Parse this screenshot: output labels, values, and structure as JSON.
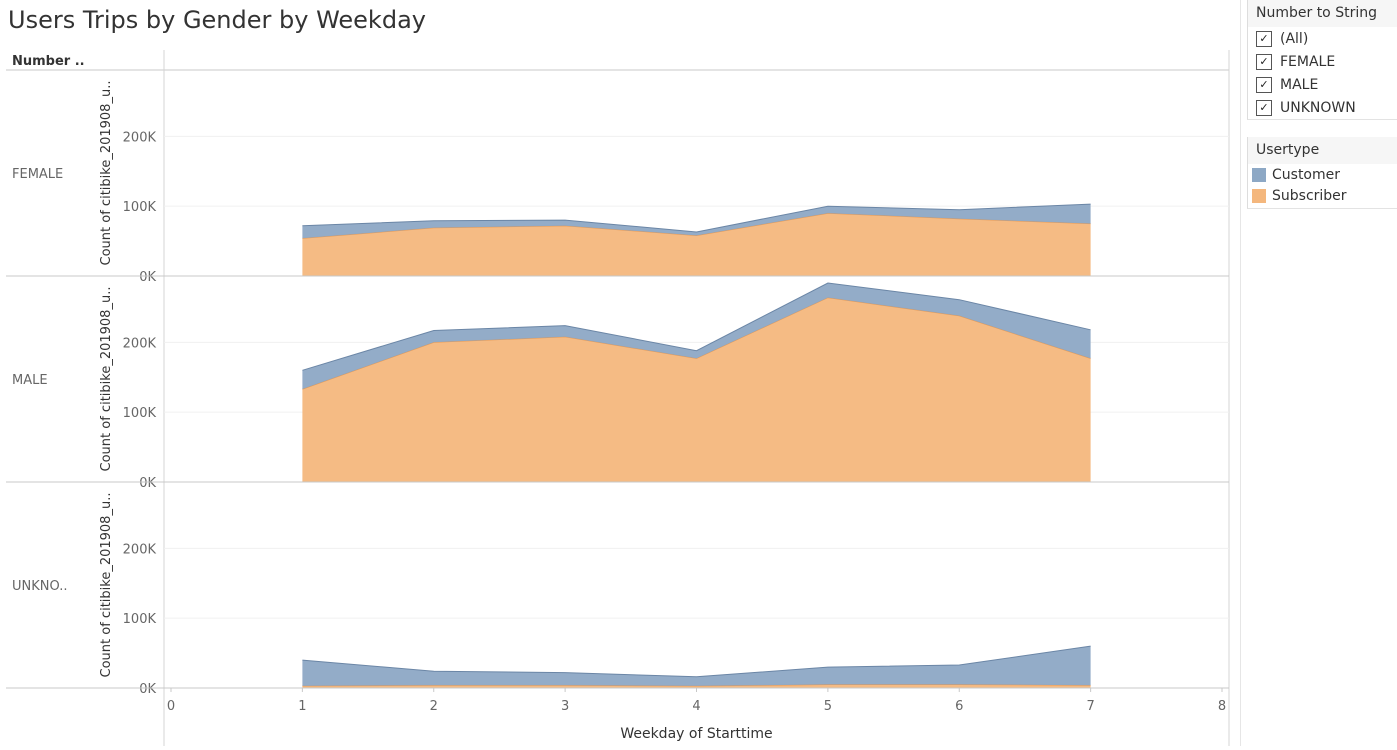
{
  "title": "Users Trips by Gender by Weekday",
  "row_header": "Number ..",
  "filter": {
    "title": "Number to String",
    "items": [
      {
        "label": "(All)",
        "checked": true
      },
      {
        "label": "FEMALE",
        "checked": true
      },
      {
        "label": "MALE",
        "checked": true
      },
      {
        "label": "UNKNOWN",
        "checked": true
      }
    ]
  },
  "legend": {
    "title": "Usertype",
    "items": [
      {
        "label": "Customer",
        "color": "#8da8c5"
      },
      {
        "label": "Subscriber",
        "color": "#f4b77d"
      }
    ]
  },
  "chart_data": {
    "type": "area",
    "stacked": true,
    "xlabel": "Weekday of Starttime",
    "ylabel": "Count of citibike_201908_u..",
    "xlim": [
      0,
      8
    ],
    "xticks": [
      0,
      1,
      2,
      3,
      4,
      5,
      6,
      7,
      8
    ],
    "ylim": [
      0,
      295000
    ],
    "yticks": [
      0,
      100000,
      200000
    ],
    "ytick_labels": [
      "0K",
      "100K",
      "200K"
    ],
    "x": [
      1,
      2,
      3,
      4,
      5,
      6,
      7
    ],
    "series_colors": {
      "Customer": "#8da8c5",
      "Subscriber": "#f4b77d"
    },
    "panels": [
      {
        "row_label": "FEMALE",
        "series": [
          {
            "name": "Subscriber",
            "values": [
              54000,
              69000,
              72000,
              58000,
              90000,
              82000,
              75000
            ]
          },
          {
            "name": "Customer",
            "values": [
              18000,
              10000,
              8000,
              5000,
              10000,
              13000,
              28000
            ]
          }
        ]
      },
      {
        "row_label": "MALE",
        "series": [
          {
            "name": "Subscriber",
            "values": [
              133000,
              200000,
              208000,
              177000,
              264000,
              238000,
              177000
            ]
          },
          {
            "name": "Customer",
            "values": [
              27000,
              17000,
              16000,
              11000,
              21000,
              23000,
              41000
            ]
          }
        ]
      },
      {
        "row_label": "UNKNO..",
        "series": [
          {
            "name": "Subscriber",
            "values": [
              3000,
              4000,
              4000,
              3000,
              5000,
              5000,
              4000
            ]
          },
          {
            "name": "Customer",
            "values": [
              37000,
              20000,
              18000,
              13000,
              25000,
              28000,
              56000
            ]
          }
        ]
      }
    ]
  }
}
